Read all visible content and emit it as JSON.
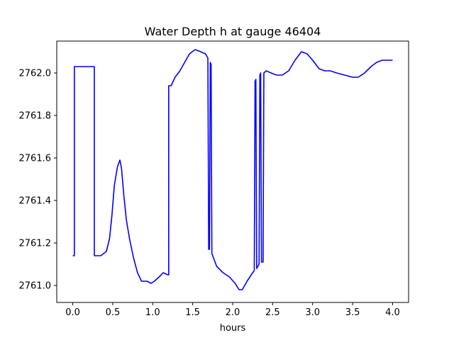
{
  "chart_data": {
    "type": "line",
    "title": "Water Depth h at gauge 46404",
    "xlabel": "hours",
    "ylabel": "",
    "xlim": [
      -0.2,
      4.2
    ],
    "ylim": [
      2760.92,
      2762.15
    ],
    "xticks": [
      0.0,
      0.5,
      1.0,
      1.5,
      2.0,
      2.5,
      3.0,
      3.5,
      4.0
    ],
    "xtick_labels": [
      "0.0",
      "0.5",
      "1.0",
      "1.5",
      "2.0",
      "2.5",
      "3.0",
      "3.5",
      "4.0"
    ],
    "yticks": [
      2761.0,
      2761.2,
      2761.4,
      2761.6,
      2761.8,
      2762.0
    ],
    "ytick_labels": [
      "2761.0",
      "2761.2",
      "2761.4",
      "2761.6",
      "2761.8",
      "2762.0"
    ],
    "grid": false,
    "series": [
      {
        "color": "#0000ff",
        "points": [
          [
            0.0,
            2761.14
          ],
          [
            0.02,
            2761.14
          ],
          [
            0.02,
            2762.03
          ],
          [
            0.27,
            2762.03
          ],
          [
            0.27,
            2761.14
          ],
          [
            0.35,
            2761.14
          ],
          [
            0.42,
            2761.16
          ],
          [
            0.46,
            2761.22
          ],
          [
            0.49,
            2761.33
          ],
          [
            0.52,
            2761.47
          ],
          [
            0.56,
            2761.56
          ],
          [
            0.59,
            2761.59
          ],
          [
            0.61,
            2761.55
          ],
          [
            0.64,
            2761.42
          ],
          [
            0.67,
            2761.31
          ],
          [
            0.71,
            2761.22
          ],
          [
            0.76,
            2761.13
          ],
          [
            0.81,
            2761.06
          ],
          [
            0.86,
            2761.02
          ],
          [
            0.93,
            2761.02
          ],
          [
            0.98,
            2761.01
          ],
          [
            1.02,
            2761.02
          ],
          [
            1.08,
            2761.04
          ],
          [
            1.13,
            2761.06
          ],
          [
            1.19,
            2761.05
          ],
          [
            1.2,
            2761.05
          ],
          [
            1.2,
            2761.94
          ],
          [
            1.23,
            2761.94
          ],
          [
            1.28,
            2761.98
          ],
          [
            1.34,
            2762.01
          ],
          [
            1.4,
            2762.05
          ],
          [
            1.46,
            2762.09
          ],
          [
            1.53,
            2762.11
          ],
          [
            1.6,
            2762.1
          ],
          [
            1.66,
            2762.09
          ],
          [
            1.69,
            2762.07
          ],
          [
            1.7,
            2761.17
          ],
          [
            1.71,
            2761.17
          ],
          [
            1.72,
            2762.05
          ],
          [
            1.73,
            2762.04
          ],
          [
            1.74,
            2761.15
          ],
          [
            1.8,
            2761.09
          ],
          [
            1.88,
            2761.06
          ],
          [
            1.96,
            2761.04
          ],
          [
            2.03,
            2761.01
          ],
          [
            2.08,
            2760.98
          ],
          [
            2.12,
            2760.98
          ],
          [
            2.18,
            2761.02
          ],
          [
            2.25,
            2761.06
          ],
          [
            2.27,
            2761.07
          ],
          [
            2.28,
            2761.96
          ],
          [
            2.29,
            2761.97
          ],
          [
            2.3,
            2761.08
          ],
          [
            2.33,
            2761.1
          ],
          [
            2.34,
            2761.99
          ],
          [
            2.35,
            2762.0
          ],
          [
            2.36,
            2761.11
          ],
          [
            2.38,
            2761.11
          ],
          [
            2.39,
            2762.0
          ],
          [
            2.42,
            2762.01
          ],
          [
            2.48,
            2762.0
          ],
          [
            2.55,
            2761.99
          ],
          [
            2.62,
            2761.99
          ],
          [
            2.7,
            2762.01
          ],
          [
            2.78,
            2762.06
          ],
          [
            2.86,
            2762.1
          ],
          [
            2.93,
            2762.09
          ],
          [
            3.0,
            2762.06
          ],
          [
            3.08,
            2762.02
          ],
          [
            3.15,
            2762.01
          ],
          [
            3.22,
            2762.01
          ],
          [
            3.3,
            2762.0
          ],
          [
            3.4,
            2761.99
          ],
          [
            3.5,
            2761.98
          ],
          [
            3.57,
            2761.98
          ],
          [
            3.65,
            2762.0
          ],
          [
            3.73,
            2762.03
          ],
          [
            3.8,
            2762.05
          ],
          [
            3.87,
            2762.06
          ],
          [
            3.95,
            2762.06
          ],
          [
            4.0,
            2762.06
          ]
        ]
      }
    ]
  }
}
